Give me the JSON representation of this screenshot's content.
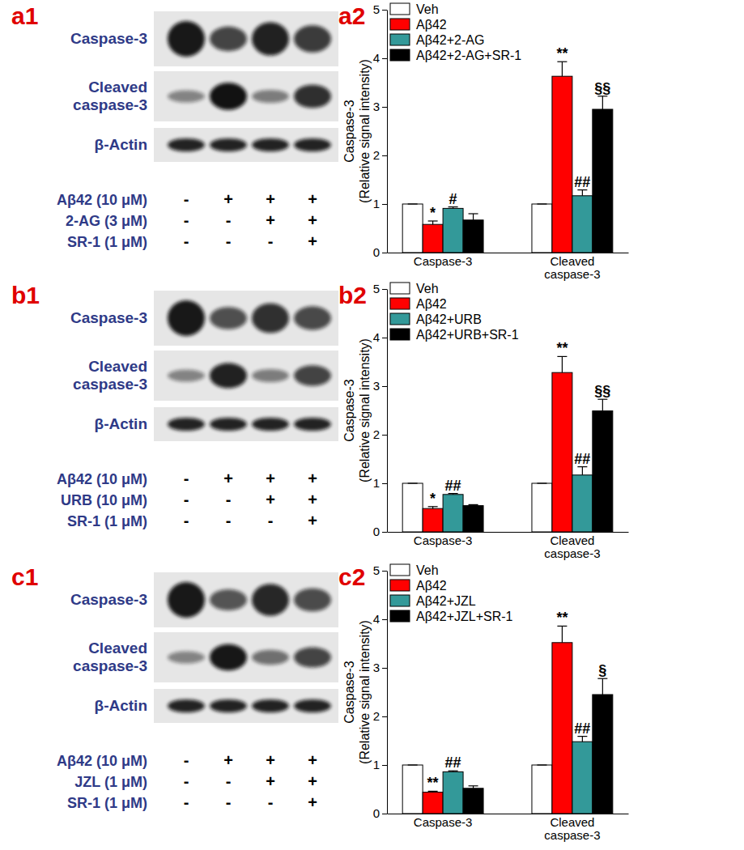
{
  "chart_data": [
    {
      "type": "bar",
      "panel_labels": [
        "a1",
        "a2"
      ],
      "blot": {
        "bands": [
          "Caspase-3",
          "Cleaved caspase-3",
          "β-Actin"
        ],
        "treatments": [
          {
            "label": "Aβ42 (10 μM)",
            "signs": [
              "-",
              "+",
              "+",
              "+"
            ]
          },
          {
            "label": "2-AG (3 μM)",
            "signs": [
              "-",
              "-",
              "+",
              "+"
            ]
          },
          {
            "label": "SR-1 (1 μM)",
            "signs": [
              "-",
              "-",
              "-",
              "+"
            ]
          }
        ]
      },
      "y_label": [
        "Caspase-3",
        "(Relative signal intensity)"
      ],
      "categories": [
        "Caspase-3",
        "Cleaved caspase-3"
      ],
      "series": [
        {
          "name": "Veh",
          "color": "#ffffff",
          "values": [
            1,
            1
          ],
          "errors": [
            0,
            0
          ],
          "annotations": [
            null,
            null
          ]
        },
        {
          "name": "Aβ42",
          "color": "#ff0000",
          "values": [
            0.58,
            3.63
          ],
          "errors": [
            0.07,
            0.3
          ],
          "annotations": [
            "*",
            "**"
          ]
        },
        {
          "name": "Aβ42+2-AG",
          "color": "#339999",
          "values": [
            0.91,
            1.17
          ],
          "errors": [
            0.03,
            0.12
          ],
          "annotations": [
            "#",
            "##"
          ]
        },
        {
          "name": "Aβ42+2-AG+SR-1",
          "color": "#000000",
          "values": [
            0.67,
            2.95
          ],
          "errors": [
            0.13,
            0.27
          ],
          "annotations": [
            null,
            "§§"
          ]
        }
      ],
      "ylim": [
        0,
        5
      ],
      "yticks": [
        0,
        1,
        2,
        3,
        4,
        5
      ],
      "legend": "upper left"
    },
    {
      "type": "bar",
      "panel_labels": [
        "b1",
        "b2"
      ],
      "blot": {
        "bands": [
          "Caspase-3",
          "Cleaved caspase-3",
          "β-Actin"
        ],
        "treatments": [
          {
            "label": "Aβ42 (10 μM)",
            "signs": [
              "-",
              "+",
              "+",
              "+"
            ]
          },
          {
            "label": "URB (10 μM)",
            "signs": [
              "-",
              "-",
              "+",
              "+"
            ]
          },
          {
            "label": "SR-1 (1 μM)",
            "signs": [
              "-",
              "-",
              "-",
              "+"
            ]
          }
        ]
      },
      "y_label": [
        "Caspase-3",
        "(Relative signal intensity)"
      ],
      "categories": [
        "Caspase-3",
        "Cleaved caspase-3"
      ],
      "series": [
        {
          "name": "Veh",
          "color": "#ffffff",
          "values": [
            1,
            1
          ],
          "errors": [
            0,
            0
          ],
          "annotations": [
            null,
            null
          ]
        },
        {
          "name": "Aβ42",
          "color": "#ff0000",
          "values": [
            0.48,
            3.28
          ],
          "errors": [
            0.04,
            0.33
          ],
          "annotations": [
            "*",
            "**"
          ]
        },
        {
          "name": "Aβ42+URB",
          "color": "#339999",
          "values": [
            0.77,
            1.17
          ],
          "errors": [
            0.02,
            0.17
          ],
          "annotations": [
            "##",
            "##"
          ]
        },
        {
          "name": "Aβ42+URB+SR-1",
          "color": "#000000",
          "values": [
            0.54,
            2.49
          ],
          "errors": [
            0.02,
            0.24
          ],
          "annotations": [
            null,
            "§§"
          ]
        }
      ],
      "ylim": [
        0,
        5
      ],
      "yticks": [
        0,
        1,
        2,
        3,
        4,
        5
      ],
      "legend": "upper left"
    },
    {
      "type": "bar",
      "panel_labels": [
        "c1",
        "c2"
      ],
      "blot": {
        "bands": [
          "Caspase-3",
          "Cleaved caspase-3",
          "β-Actin"
        ],
        "treatments": [
          {
            "label": "Aβ42 (10 μM)",
            "signs": [
              "-",
              "+",
              "+",
              "+"
            ]
          },
          {
            "label": "JZL (1 μM)",
            "signs": [
              "-",
              "-",
              "+",
              "+"
            ]
          },
          {
            "label": "SR-1 (1 μM)",
            "signs": [
              "-",
              "-",
              "-",
              "+"
            ]
          }
        ]
      },
      "y_label": [
        "Caspase-3",
        "(Relative signal intensity)"
      ],
      "categories": [
        "Caspase-3",
        "Cleaved caspase-3"
      ],
      "series": [
        {
          "name": "Veh",
          "color": "#ffffff",
          "values": [
            1,
            1
          ],
          "errors": [
            0,
            0
          ],
          "annotations": [
            null,
            null
          ]
        },
        {
          "name": "Aβ42",
          "color": "#ff0000",
          "values": [
            0.44,
            3.52
          ],
          "errors": [
            0.02,
            0.34
          ],
          "annotations": [
            "**",
            "**"
          ]
        },
        {
          "name": "Aβ42+JZL",
          "color": "#339999",
          "values": [
            0.86,
            1.48
          ],
          "errors": [
            0.02,
            0.11
          ],
          "annotations": [
            "##",
            "##"
          ]
        },
        {
          "name": "Aβ42+JZL+SR-1",
          "color": "#000000",
          "values": [
            0.52,
            2.45
          ],
          "errors": [
            0.05,
            0.33
          ],
          "annotations": [
            null,
            "§"
          ]
        }
      ],
      "ylim": [
        0,
        5
      ],
      "yticks": [
        0,
        1,
        2,
        3,
        4,
        5
      ],
      "legend": "upper left"
    }
  ]
}
